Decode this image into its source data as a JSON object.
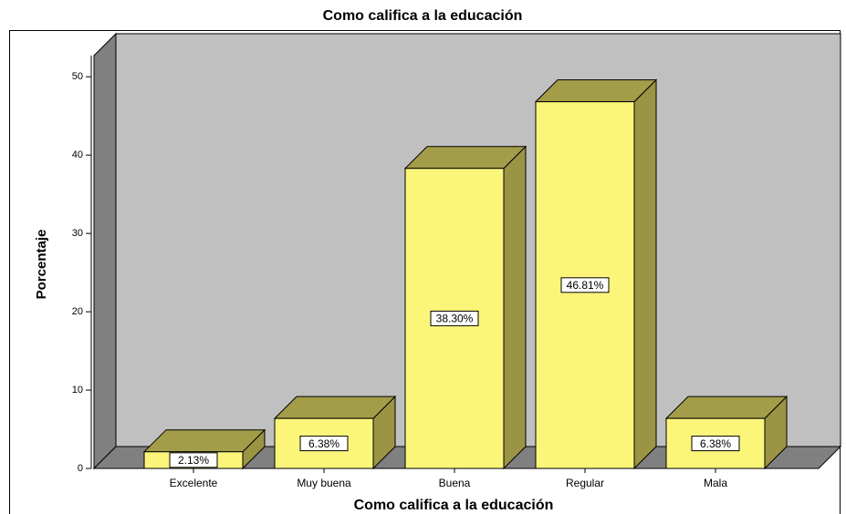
{
  "chart_data": {
    "type": "bar3d",
    "title": "Como califica a la educación",
    "x_label": "Como califica a la educación",
    "y_label": "Porcentaje",
    "categories": [
      "Excelente",
      "Muy buena",
      "Buena",
      "Regular",
      "Mala"
    ],
    "values": [
      2.13,
      6.38,
      38.3,
      46.81,
      6.38
    ],
    "value_labels": [
      "2.13%",
      "6.38%",
      "38.30%",
      "46.81%",
      "6.38%"
    ],
    "color": "#fbf67a",
    "ylim": [
      0,
      52.7
    ],
    "yticks": [
      0,
      10,
      20,
      30,
      40,
      50
    ]
  }
}
